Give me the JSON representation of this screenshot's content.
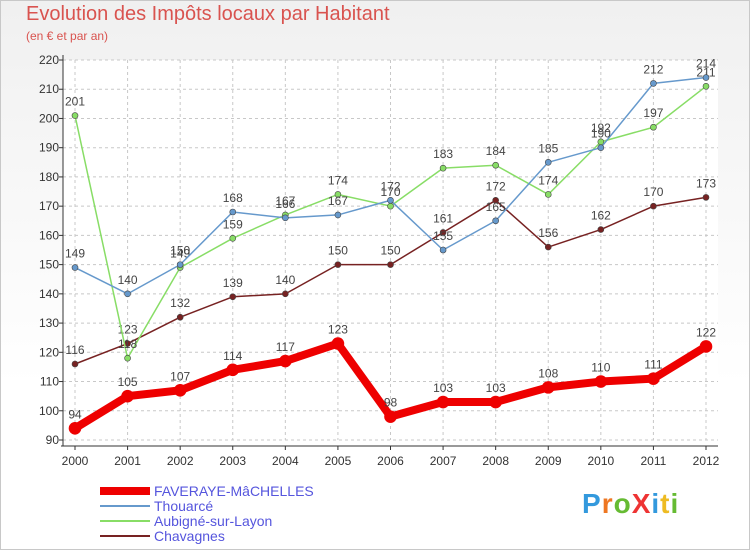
{
  "title": "Evolution des Impôts locaux par Habitant",
  "subtitle": "(en € et par an)",
  "logo_text": "ProXiti",
  "colors": {
    "title": "#d9534f",
    "grid": "#c8c8c8",
    "axis_text": "#333333",
    "legend_text": "#5555dd"
  },
  "chart_data": {
    "type": "line",
    "x": [
      2000,
      2001,
      2002,
      2003,
      2004,
      2005,
      2006,
      2007,
      2008,
      2009,
      2010,
      2011,
      2012
    ],
    "ylim": [
      90,
      220
    ],
    "yticks": [
      90,
      100,
      110,
      120,
      130,
      140,
      150,
      160,
      170,
      180,
      190,
      200,
      210,
      220
    ],
    "grid": true,
    "legend_position": "bottom-left",
    "series": [
      {
        "name": "FAVERAYE-MâCHELLES",
        "color": "#ee0000",
        "width": 8,
        "values": [
          94,
          105,
          107,
          114,
          117,
          123,
          98,
          103,
          103,
          108,
          110,
          111,
          122
        ]
      },
      {
        "name": "Thouarcé",
        "color": "#6699cc",
        "width": 1.5,
        "values": [
          149,
          140,
          150,
          168,
          166,
          167,
          172,
          155,
          165,
          185,
          190,
          212,
          214
        ]
      },
      {
        "name": "Aubigné-sur-Layon",
        "color": "#88dd66",
        "width": 1.5,
        "values": [
          201,
          118,
          149,
          159,
          167,
          174,
          170,
          183,
          184,
          174,
          192,
          197,
          211
        ]
      },
      {
        "name": "Chavagnes",
        "color": "#772222",
        "width": 1.5,
        "values": [
          116,
          123,
          132,
          139,
          140,
          150,
          150,
          161,
          172,
          156,
          162,
          170,
          173
        ]
      }
    ]
  }
}
